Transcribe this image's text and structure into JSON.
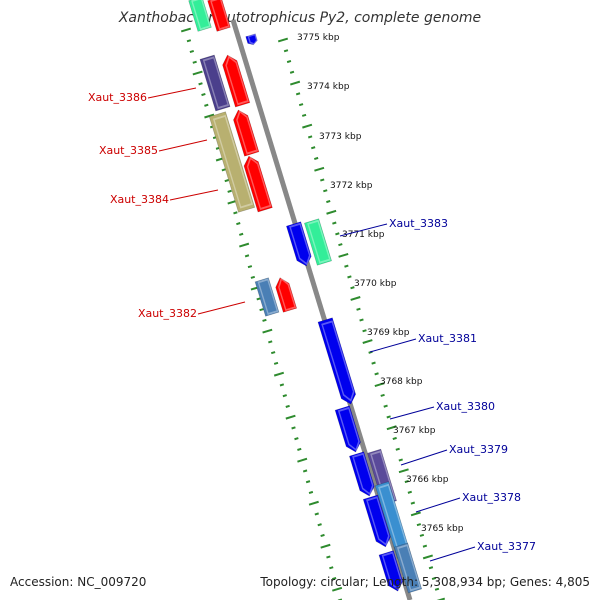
{
  "title": "Xanthobacter autotrophicus Py2, complete genome",
  "accession": "Accession: NC_009720",
  "summary": "Topology: circular; Length: 5,308,934 bp; Genes: 4,805",
  "colors": {
    "backbone": "#888888",
    "tick": "#2e8b2e",
    "reverse_label": "#cc0000",
    "forward_label": "#000099",
    "red": "#ff0000",
    "blue": "#0000ee",
    "navy": "#4b3f8c",
    "olive": "#b8b070",
    "teal": "#3a8fd0",
    "mint": "#33ee99",
    "steel": "#4a7fb5",
    "purple": "#5a4a9a"
  },
  "kbp_ticks": [
    {
      "label": "3775 kbp"
    },
    {
      "label": "3774 kbp"
    },
    {
      "label": "3773 kbp"
    },
    {
      "label": "3772 kbp"
    },
    {
      "label": "3771 kbp"
    },
    {
      "label": "3770 kbp"
    },
    {
      "label": "3769 kbp"
    },
    {
      "label": "3768 kbp"
    },
    {
      "label": "3767 kbp"
    },
    {
      "label": "3766 kbp"
    },
    {
      "label": "3765 kbp"
    }
  ],
  "reverse_genes": [
    {
      "label": "Xaut_3386"
    },
    {
      "label": "Xaut_3385"
    },
    {
      "label": "Xaut_3384"
    },
    {
      "label": "Xaut_3382"
    }
  ],
  "forward_genes": [
    {
      "label": "Xaut_3383"
    },
    {
      "label": "Xaut_3381"
    },
    {
      "label": "Xaut_3380"
    },
    {
      "label": "Xaut_3379"
    },
    {
      "label": "Xaut_3378"
    },
    {
      "label": "Xaut_3377"
    }
  ]
}
